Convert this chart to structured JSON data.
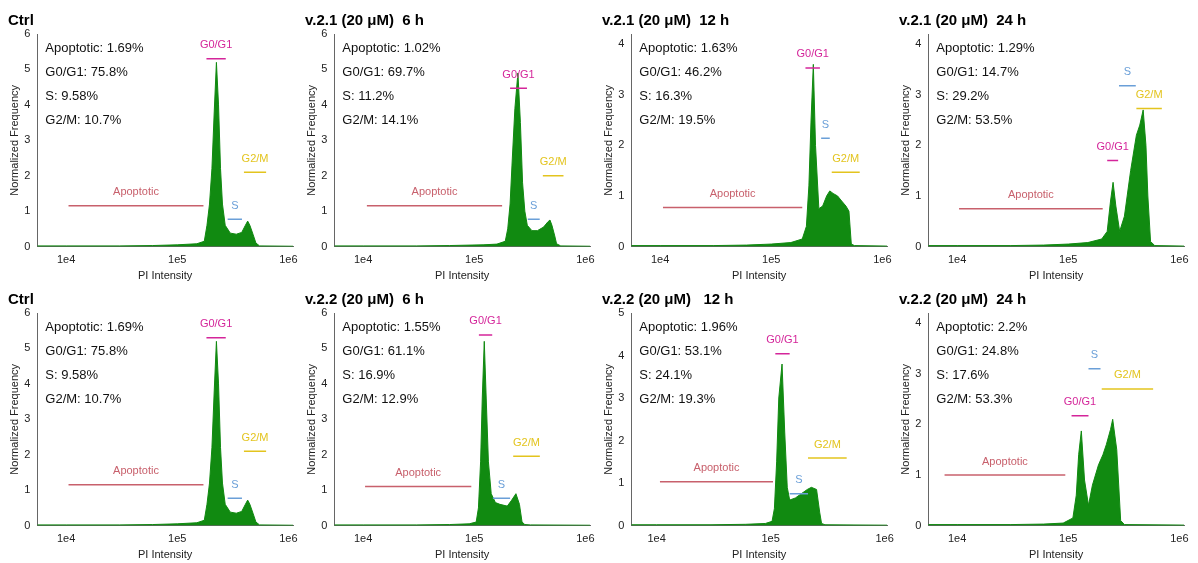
{
  "chart_data": [
    {
      "type": "area",
      "title": "Ctrl",
      "xlabel": "PI Intensity",
      "ylabel": "Normalized Frequency",
      "log": "x",
      "xlim": [
        5500,
        1100000
      ],
      "xticks": [
        {
          "value": 10000,
          "label": "1e4"
        },
        {
          "value": 100000,
          "label": "1e5"
        },
        {
          "value": 1000000,
          "label": "1e6"
        }
      ],
      "ylim": [
        0,
        6
      ],
      "yticks": [
        0,
        1,
        2,
        3,
        4,
        5,
        6
      ],
      "annotations": [
        "Apoptotic: 1.69%",
        "G0/G1: 75.8%",
        "S: 9.58%",
        "G2/M: 10.7%"
      ],
      "series": [
        {
          "color": "#118a11",
          "x": [
            5500,
            10000,
            30000,
            60000,
            100000,
            150000,
            175000,
            185000,
            195000,
            205000,
            215000,
            225000,
            235000,
            245000,
            255000,
            270000,
            300000,
            340000,
            380000,
            410000,
            430000,
            450000,
            480000,
            510000,
            550000,
            1100000
          ],
          "values": [
            0.02,
            0.02,
            0.02,
            0.03,
            0.05,
            0.08,
            0.15,
            0.6,
            1.2,
            2.2,
            3.8,
            5.2,
            4.0,
            2.2,
            1.2,
            0.6,
            0.38,
            0.35,
            0.4,
            0.6,
            0.72,
            0.6,
            0.35,
            0.1,
            0.02,
            0.01
          ]
        },
        {
          "type": "line",
          "name": "Apoptotic",
          "color": "#c8606c",
          "x": [
            10500,
            172000
          ],
          "values": [
            1.15,
            1.15
          ]
        },
        {
          "type": "line",
          "name": "G0/G1",
          "color": "#d4259a",
          "x": [
            183000,
            273000
          ],
          "values": [
            5.3,
            5.3
          ]
        },
        {
          "type": "line",
          "name": "S",
          "color": "#6a9fd8",
          "x": [
            284000,
            382000
          ],
          "values": [
            0.77,
            0.77
          ]
        },
        {
          "type": "line",
          "name": "G2/M",
          "color": "#e3c41e",
          "x": [
            398000,
            630000
          ],
          "values": [
            2.1,
            2.1
          ]
        }
      ]
    },
    {
      "type": "area",
      "title": "v.2.1 (20 μM)  6 h",
      "xlabel": "PI Intensity",
      "ylabel": "Normalized Frequency",
      "log": "x",
      "xlim": [
        5500,
        1100000
      ],
      "xticks": [
        {
          "value": 10000,
          "label": "1e4"
        },
        {
          "value": 100000,
          "label": "1e5"
        },
        {
          "value": 1000000,
          "label": "1e6"
        }
      ],
      "ylim": [
        0,
        6
      ],
      "yticks": [
        0,
        1,
        2,
        3,
        4,
        5,
        6
      ],
      "annotations": [
        "Apoptotic: 1.02%",
        "G0/G1: 69.7%",
        "S: 11.2%",
        "G2/M: 14.1%"
      ],
      "series": [
        {
          "color": "#118a11",
          "x": [
            5500,
            10000,
            30000,
            60000,
            120000,
            160000,
            190000,
            200000,
            210000,
            220000,
            232000,
            247000,
            260000,
            272000,
            285000,
            300000,
            330000,
            370000,
            420000,
            460000,
            480000,
            500000,
            530000,
            550000,
            600000,
            1100000
          ],
          "values": [
            0.02,
            0.02,
            0.02,
            0.03,
            0.05,
            0.07,
            0.15,
            0.5,
            1.2,
            2.5,
            3.9,
            4.9,
            3.5,
            1.8,
            1.0,
            0.6,
            0.45,
            0.45,
            0.55,
            0.7,
            0.75,
            0.6,
            0.3,
            0.08,
            0.02,
            0.01
          ]
        },
        {
          "type": "line",
          "name": "Apoptotic",
          "color": "#c8606c",
          "x": [
            10800,
            178000
          ],
          "values": [
            1.15,
            1.15
          ]
        },
        {
          "type": "line",
          "name": "G0/G1",
          "color": "#d4259a",
          "x": [
            210000,
            298000
          ],
          "values": [
            4.47,
            4.47
          ]
        },
        {
          "type": "line",
          "name": "S",
          "color": "#6a9fd8",
          "x": [
            303000,
            388000
          ],
          "values": [
            0.77,
            0.77
          ]
        },
        {
          "type": "line",
          "name": "G2/M",
          "color": "#e3c41e",
          "x": [
            414000,
            635000
          ],
          "values": [
            2.0,
            2.0
          ]
        }
      ]
    },
    {
      "type": "area",
      "title": "v.2.1 (20 μM)  12 h",
      "xlabel": "PI Intensity",
      "ylabel": "Normalized Frequency",
      "log": "x",
      "xlim": [
        5500,
        1100000
      ],
      "xticks": [
        {
          "value": 10000,
          "label": "1e4"
        },
        {
          "value": 100000,
          "label": "1e5"
        },
        {
          "value": 1000000,
          "label": "1e6"
        }
      ],
      "ylim": [
        0,
        4.2
      ],
      "yticks": [
        0,
        1,
        2,
        3,
        4
      ],
      "annotations": [
        "Apoptotic: 1.63%",
        "G0/G1: 46.2%",
        "S: 16.3%",
        "G2/M: 19.5%"
      ],
      "series": [
        {
          "color": "#118a11",
          "x": [
            5500,
            10000,
            30000,
            60000,
            100000,
            150000,
            190000,
            207000,
            218000,
            228000,
            239000,
            250000,
            268000,
            290000,
            315000,
            336000,
            360000,
            395000,
            430000,
            470000,
            500000,
            525000,
            560000,
            1100000
          ],
          "values": [
            0.02,
            0.02,
            0.02,
            0.03,
            0.05,
            0.08,
            0.15,
            0.4,
            1.2,
            2.5,
            3.6,
            2.0,
            0.75,
            0.8,
            1.0,
            1.1,
            1.05,
            1.0,
            0.9,
            0.8,
            0.7,
            0.05,
            0.02,
            0.01
          ]
        },
        {
          "type": "line",
          "name": "Apoptotic",
          "color": "#c8606c",
          "x": [
            10600,
            190000
          ],
          "values": [
            0.77,
            0.77
          ]
        },
        {
          "type": "line",
          "name": "G0/G1",
          "color": "#d4259a",
          "x": [
            203000,
            274000
          ],
          "values": [
            3.53,
            3.53
          ]
        },
        {
          "type": "line",
          "name": "S",
          "color": "#6a9fd8",
          "x": [
            281000,
            336000
          ],
          "values": [
            2.14,
            2.14
          ]
        },
        {
          "type": "line",
          "name": "G2/M",
          "color": "#e3c41e",
          "x": [
            350000,
            625000
          ],
          "values": [
            1.47,
            1.47
          ]
        }
      ]
    },
    {
      "type": "area",
      "title": "v.2.1 (20 μM)  24 h",
      "xlabel": "PI Intensity",
      "ylabel": "Normalized Frequency",
      "log": "x",
      "xlim": [
        5500,
        1100000
      ],
      "xticks": [
        {
          "value": 10000,
          "label": "1e4"
        },
        {
          "value": 100000,
          "label": "1e5"
        },
        {
          "value": 1000000,
          "label": "1e6"
        }
      ],
      "ylim": [
        0,
        4.2
      ],
      "yticks": [
        0,
        1,
        2,
        3,
        4
      ],
      "annotations": [
        "Apoptotic: 1.29%",
        "G0/G1: 14.7%",
        "S: 29.2%",
        "G2/M: 53.5%"
      ],
      "series": [
        {
          "color": "#118a11",
          "x": [
            5500,
            10000,
            30000,
            60000,
            100000,
            150000,
            200000,
            224000,
            240000,
            253000,
            268000,
            290000,
            320000,
            364000,
            410000,
            440000,
            472000,
            500000,
            520000,
            550000,
            600000,
            1100000
          ],
          "values": [
            0.02,
            0.02,
            0.02,
            0.03,
            0.05,
            0.08,
            0.15,
            0.3,
            0.9,
            1.27,
            0.8,
            0.3,
            0.6,
            1.5,
            2.2,
            2.4,
            2.7,
            2.0,
            1.0,
            0.1,
            0.02,
            0.01
          ]
        },
        {
          "type": "line",
          "name": "Apoptotic",
          "color": "#c8606c",
          "x": [
            10400,
            204000
          ],
          "values": [
            0.75,
            0.75
          ]
        },
        {
          "type": "line",
          "name": "G0/G1",
          "color": "#d4259a",
          "x": [
            224000,
            281000
          ],
          "values": [
            1.7,
            1.7
          ]
        },
        {
          "type": "line",
          "name": "S",
          "color": "#6a9fd8",
          "x": [
            286000,
            405000
          ],
          "values": [
            3.18,
            3.18
          ]
        },
        {
          "type": "line",
          "name": "G2/M",
          "color": "#e3c41e",
          "x": [
            410000,
            695000
          ],
          "values": [
            2.73,
            2.73
          ]
        }
      ]
    },
    {
      "type": "area",
      "title": "Ctrl",
      "xlabel": "PI Intensity",
      "ylabel": "Normalized Frequency",
      "log": "x",
      "xlim": [
        5500,
        1100000
      ],
      "xticks": [
        {
          "value": 10000,
          "label": "1e4"
        },
        {
          "value": 100000,
          "label": "1e5"
        },
        {
          "value": 1000000,
          "label": "1e6"
        }
      ],
      "ylim": [
        0,
        6
      ],
      "yticks": [
        0,
        1,
        2,
        3,
        4,
        5,
        6
      ],
      "annotations": [
        "Apoptotic: 1.69%",
        "G0/G1: 75.8%",
        "S: 9.58%",
        "G2/M: 10.7%"
      ],
      "series": [
        {
          "color": "#118a11",
          "x": [
            5500,
            10000,
            30000,
            60000,
            100000,
            150000,
            175000,
            185000,
            195000,
            205000,
            215000,
            225000,
            235000,
            245000,
            255000,
            270000,
            300000,
            340000,
            380000,
            410000,
            430000,
            450000,
            480000,
            510000,
            550000,
            1100000
          ],
          "values": [
            0.02,
            0.02,
            0.02,
            0.03,
            0.05,
            0.08,
            0.15,
            0.6,
            1.2,
            2.2,
            3.8,
            5.2,
            4.0,
            2.2,
            1.2,
            0.6,
            0.38,
            0.35,
            0.4,
            0.6,
            0.72,
            0.6,
            0.35,
            0.1,
            0.02,
            0.01
          ]
        },
        {
          "type": "line",
          "name": "Apoptotic",
          "color": "#c8606c",
          "x": [
            10500,
            172000
          ],
          "values": [
            1.15,
            1.15
          ]
        },
        {
          "type": "line",
          "name": "G0/G1",
          "color": "#d4259a",
          "x": [
            183000,
            273000
          ],
          "values": [
            5.3,
            5.3
          ]
        },
        {
          "type": "line",
          "name": "S",
          "color": "#6a9fd8",
          "x": [
            284000,
            382000
          ],
          "values": [
            0.77,
            0.77
          ]
        },
        {
          "type": "line",
          "name": "G2/M",
          "color": "#e3c41e",
          "x": [
            398000,
            630000
          ],
          "values": [
            2.1,
            2.1
          ]
        }
      ]
    },
    {
      "type": "area",
      "title": "v.2.2 (20 μM)  6 h",
      "xlabel": "PI Intensity",
      "ylabel": "Normalized Frequency",
      "log": "x",
      "xlim": [
        5500,
        1100000
      ],
      "xticks": [
        {
          "value": 10000,
          "label": "1e4"
        },
        {
          "value": 100000,
          "label": "1e5"
        },
        {
          "value": 1000000,
          "label": "1e6"
        }
      ],
      "ylim": [
        0,
        6
      ],
      "yticks": [
        0,
        1,
        2,
        3,
        4,
        5,
        6
      ],
      "annotations": [
        "Apoptotic: 1.55%",
        "G0/G1: 61.1%",
        "S: 16.9%",
        "G2/M: 12.9%"
      ],
      "series": [
        {
          "color": "#118a11",
          "x": [
            5500,
            10000,
            30000,
            60000,
            90000,
            104000,
            109000,
            114000,
            118000,
            123000,
            128000,
            134000,
            142000,
            155000,
            170000,
            198000,
            215000,
            237000,
            255000,
            269000,
            285000,
            320000,
            1100000
          ],
          "values": [
            0.02,
            0.02,
            0.02,
            0.03,
            0.05,
            0.1,
            0.5,
            1.8,
            3.6,
            5.2,
            3.6,
            1.8,
            0.9,
            0.65,
            0.6,
            0.55,
            0.7,
            0.9,
            0.6,
            0.1,
            0.03,
            0.02,
            0.01
          ]
        },
        {
          "type": "line",
          "name": "Apoptotic",
          "color": "#c8606c",
          "x": [
            10400,
            94000
          ],
          "values": [
            1.1,
            1.1
          ]
        },
        {
          "type": "line",
          "name": "G0/G1",
          "color": "#d4259a",
          "x": [
            110000,
            145000
          ],
          "values": [
            5.38,
            5.38
          ]
        },
        {
          "type": "line",
          "name": "S",
          "color": "#6a9fd8",
          "x": [
            147000,
            210000
          ],
          "values": [
            0.77,
            0.77
          ]
        },
        {
          "type": "line",
          "name": "G2/M",
          "color": "#e3c41e",
          "x": [
            224000,
            389000
          ],
          "values": [
            1.96,
            1.96
          ]
        }
      ]
    },
    {
      "type": "area",
      "title": "v.2.2 (20 μM)   12 h",
      "xlabel": "PI Intensity",
      "ylabel": "Normalized Frequency",
      "log": "x",
      "xlim": [
        6000,
        1050000
      ],
      "xticks": [
        {
          "value": 10000,
          "label": "1e4"
        },
        {
          "value": 100000,
          "label": "1e5"
        },
        {
          "value": 1000000,
          "label": "1e6"
        }
      ],
      "ylim": [
        0,
        5
      ],
      "yticks": [
        0,
        1,
        2,
        3,
        4,
        5
      ],
      "annotations": [
        "Apoptotic: 1.96%",
        "G0/G1: 53.1%",
        "S: 24.1%",
        "G2/M: 19.3%"
      ],
      "series": [
        {
          "color": "#118a11",
          "x": [
            6000,
            10000,
            30000,
            60000,
            90000,
            103000,
            108000,
            113000,
            118000,
            126000,
            133000,
            140000,
            147000,
            165000,
            186000,
            210000,
            228000,
            253000,
            270000,
            280000,
            300000,
            1050000
          ],
          "values": [
            0.02,
            0.02,
            0.02,
            0.03,
            0.05,
            0.1,
            0.4,
            1.5,
            3.0,
            3.8,
            2.2,
            0.9,
            0.6,
            0.65,
            0.75,
            0.85,
            0.9,
            0.85,
            0.3,
            0.05,
            0.02,
            0.01
          ]
        },
        {
          "type": "line",
          "name": "Apoptotic",
          "color": "#c8606c",
          "x": [
            10700,
            105000
          ],
          "values": [
            1.03,
            1.03
          ]
        },
        {
          "type": "line",
          "name": "G0/G1",
          "color": "#d4259a",
          "x": [
            110000,
            147000
          ],
          "values": [
            4.04,
            4.04
          ]
        },
        {
          "type": "line",
          "name": "S",
          "color": "#6a9fd8",
          "x": [
            147000,
            213000
          ],
          "values": [
            0.75,
            0.75
          ]
        },
        {
          "type": "line",
          "name": "G2/M",
          "color": "#e3c41e",
          "x": [
            213000,
            465000
          ],
          "values": [
            1.59,
            1.59
          ]
        }
      ]
    },
    {
      "type": "area",
      "title": "v.2.2 (20 μM)  24 h",
      "xlabel": "PI Intensity",
      "ylabel": "Normalized Frequency",
      "log": "x",
      "xlim": [
        5500,
        1100000
      ],
      "xticks": [
        {
          "value": 10000,
          "label": "1e4"
        },
        {
          "value": 100000,
          "label": "1e5"
        },
        {
          "value": 1000000,
          "label": "1e6"
        }
      ],
      "ylim": [
        0,
        4.2
      ],
      "yticks": [
        0,
        1,
        2,
        3,
        4
      ],
      "annotations": [
        "Apoptotic: 2.2%",
        "G0/G1: 24.8%",
        "S: 17.6%",
        "G2/M: 53.3%"
      ],
      "series": [
        {
          "color": "#118a11",
          "x": [
            5500,
            10000,
            30000,
            60000,
            90000,
            110000,
            118000,
            124000,
            131000,
            140000,
            152000,
            165000,
            187000,
            205000,
            220000,
            240000,
            251000,
            273000,
            296000,
            320000,
            1100000
          ],
          "values": [
            0.02,
            0.02,
            0.02,
            0.03,
            0.05,
            0.15,
            0.6,
            1.4,
            1.87,
            0.9,
            0.4,
            0.8,
            1.2,
            1.4,
            1.6,
            1.9,
            2.1,
            1.5,
            0.1,
            0.02,
            0.01
          ]
        },
        {
          "type": "line",
          "name": "Apoptotic",
          "color": "#c8606c",
          "x": [
            7700,
            94000
          ],
          "values": [
            1.0,
            1.0
          ]
        },
        {
          "type": "line",
          "name": "G0/G1",
          "color": "#d4259a",
          "x": [
            107000,
            152000
          ],
          "values": [
            2.17,
            2.17
          ]
        },
        {
          "type": "line",
          "name": "S",
          "color": "#6a9fd8",
          "x": [
            152000,
            195000
          ],
          "values": [
            3.1,
            3.1
          ]
        },
        {
          "type": "line",
          "name": "G2/M",
          "color": "#e3c41e",
          "x": [
            200000,
            580000
          ],
          "values": [
            2.7,
            2.7
          ]
        }
      ]
    }
  ]
}
